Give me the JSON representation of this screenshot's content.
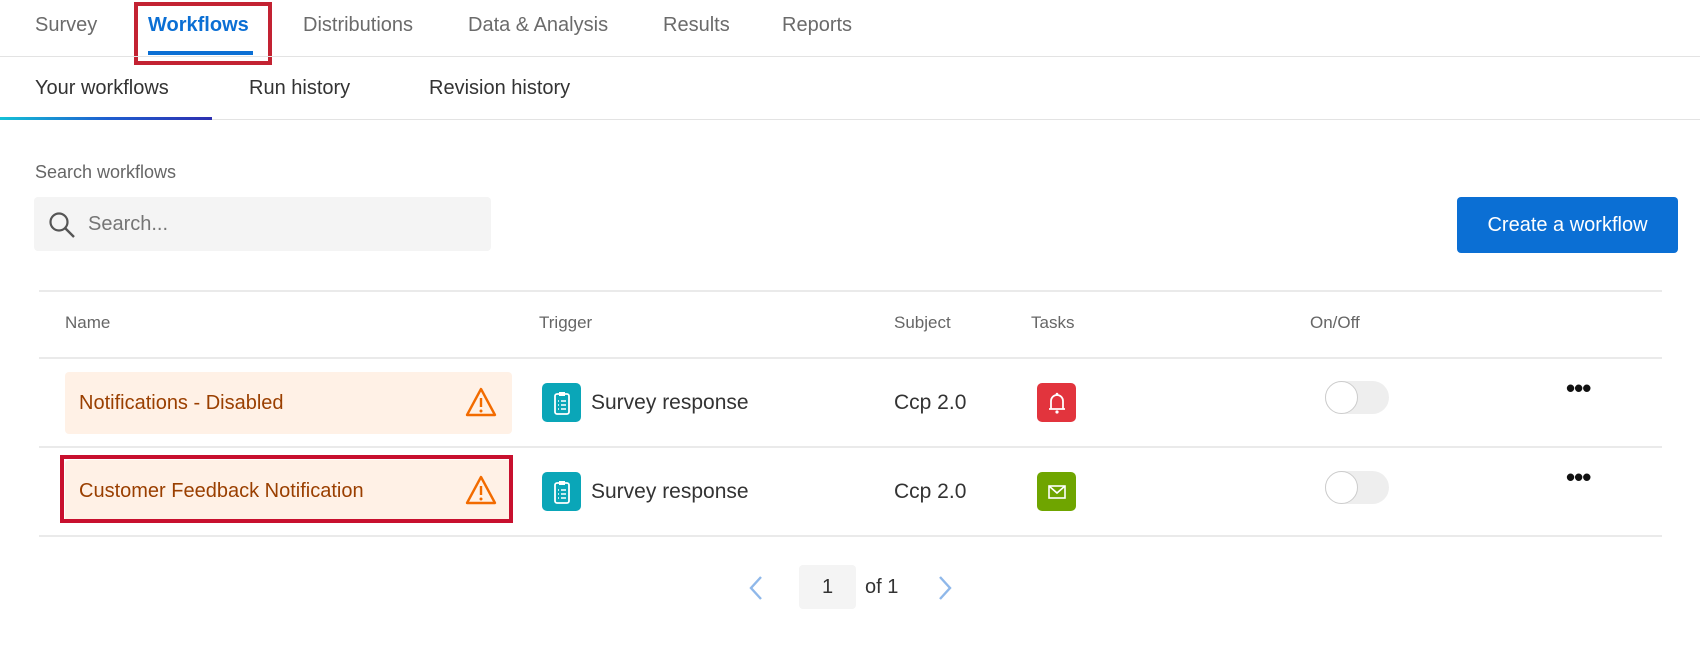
{
  "tabs": [
    {
      "label": "Survey"
    },
    {
      "label": "Workflows",
      "active": true
    },
    {
      "label": "Distributions"
    },
    {
      "label": "Data & Analysis"
    },
    {
      "label": "Results"
    },
    {
      "label": "Reports"
    }
  ],
  "subtabs": [
    {
      "label": "Your workflows",
      "active": true
    },
    {
      "label": "Run history"
    },
    {
      "label": "Revision history"
    }
  ],
  "search": {
    "label": "Search workflows",
    "placeholder": "Search..."
  },
  "create_button": "Create a workflow",
  "table": {
    "headers": [
      "Name",
      "Trigger",
      "Subject",
      "Tasks",
      "On/Off"
    ],
    "rows": [
      {
        "name": "Notifications - Disabled",
        "trigger": "Survey response",
        "subject": "Ccp 2.0",
        "task_icon": "bell-icon",
        "task_color": "#e2343d",
        "on": false
      },
      {
        "name": "Customer Feedback Notification",
        "trigger": "Survey response",
        "subject": "Ccp 2.0",
        "task_icon": "email-icon",
        "task_color": "#6fa500",
        "on": false,
        "highlighted": true
      }
    ]
  },
  "pagination": {
    "page": "1",
    "of": "of 1"
  },
  "colors": {
    "accent": "#0b6fd4",
    "highlight": "#c8102e",
    "warning": "#f26b00"
  }
}
